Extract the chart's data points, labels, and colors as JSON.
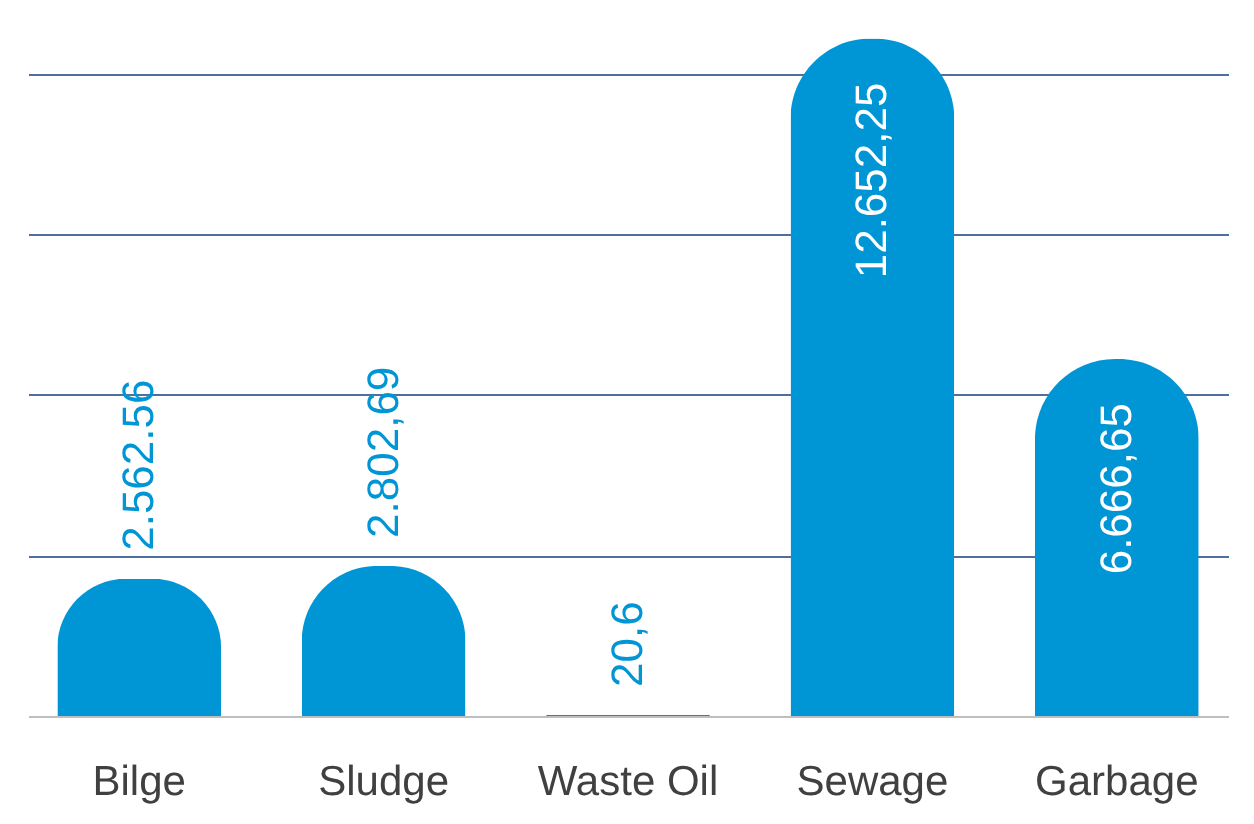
{
  "chart_data": {
    "type": "bar",
    "categories": [
      "Bilge",
      "Sludge",
      "Waste Oil",
      "Sewage",
      "Garbage"
    ],
    "values": [
      2562.56,
      2802.69,
      20.6,
      12652.25,
      6666.65
    ],
    "value_labels": [
      "2.562.56",
      "2.802,69",
      "20,6",
      "12.652,25",
      "6.666,65"
    ],
    "color": "#0096d6",
    "ylim": [
      0,
      12700
    ],
    "yticks": [
      {
        "value": 0,
        "label": null
      },
      {
        "value": 3000,
        "label": null
      },
      {
        "value": 6000,
        "label": null
      },
      {
        "value": 9000,
        "label": null
      },
      {
        "value": 12000,
        "label": null
      }
    ],
    "grid": "y",
    "tick_labels": "x"
  }
}
